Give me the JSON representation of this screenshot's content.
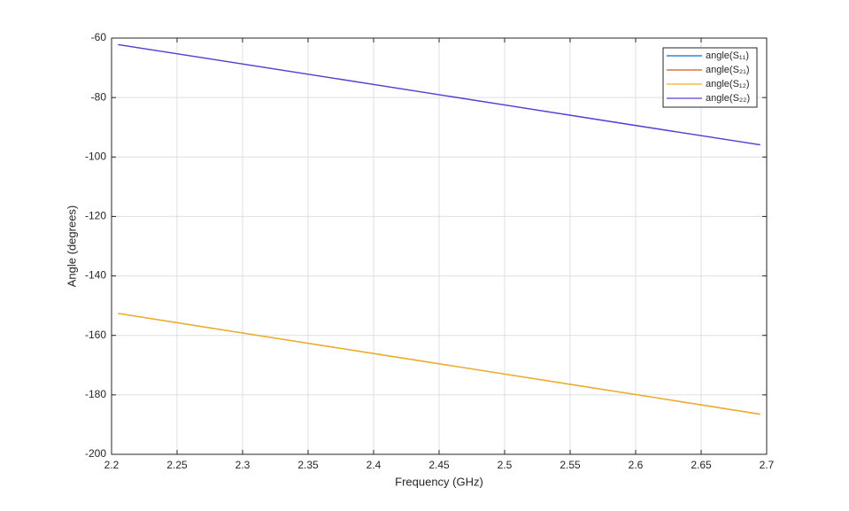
{
  "chart_data": {
    "type": "line",
    "xlabel": "Frequency (GHz)",
    "ylabel": "Angle (degrees)",
    "x": [
      2.205,
      2.3,
      2.4,
      2.5,
      2.6,
      2.695
    ],
    "series": [
      {
        "name": "angle(S₁₁)",
        "color": "#0072BD",
        "values": [
          -62.2,
          -68.7,
          -75.6,
          -82.5,
          -89.4,
          -95.9
        ]
      },
      {
        "name": "angle(S₂₁)",
        "color": "#D95319",
        "values": [
          -152.6,
          -159.2,
          -166.1,
          -173.0,
          -179.9,
          -186.5
        ]
      },
      {
        "name": "angle(S₁₂)",
        "color": "#EDB120",
        "values": [
          -152.6,
          -159.2,
          -166.1,
          -173.0,
          -179.9,
          -186.5
        ]
      },
      {
        "name": "angle(S₂₂)",
        "color": "#5E3AD8",
        "values": [
          -62.2,
          -68.7,
          -75.6,
          -82.5,
          -89.4,
          -95.9
        ]
      }
    ],
    "xlim": [
      2.2,
      2.7
    ],
    "xticks": [
      2.2,
      2.25,
      2.3,
      2.35,
      2.4,
      2.45,
      2.5,
      2.55,
      2.6,
      2.65,
      2.7
    ],
    "ylim": [
      -200,
      -60
    ],
    "yticks": [
      -200,
      -180,
      -160,
      -140,
      -120,
      -100,
      -80,
      -60
    ],
    "grid": true,
    "legend_position": "northeast"
  }
}
